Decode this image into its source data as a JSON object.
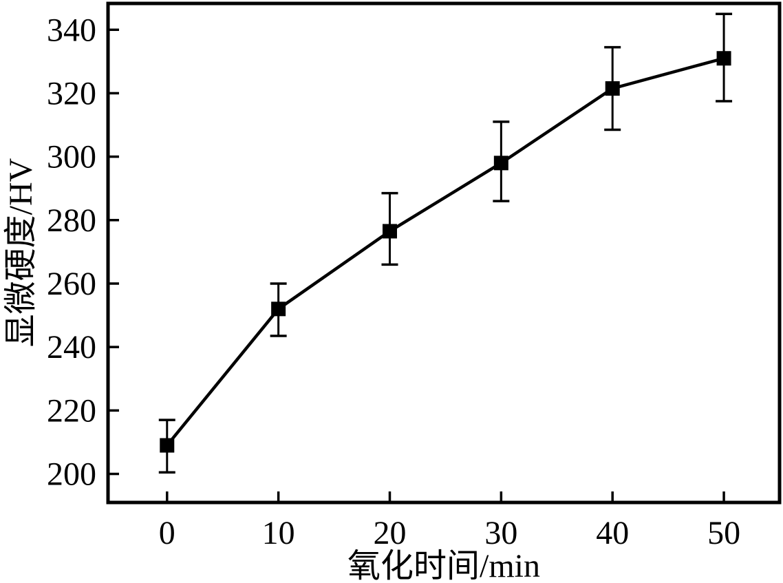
{
  "figure": {
    "background": "#ffffff",
    "ink_color": "#000000"
  },
  "chart_data": {
    "type": "line",
    "title": "",
    "xlabel": "氧化时间/min",
    "ylabel": "显微硬度/HV",
    "grid": false,
    "legend": false,
    "marker": "filled-square",
    "series": [
      {
        "name": "microhardness-vs-oxidation-time",
        "color": "#000000",
        "points": [
          {
            "x": 0,
            "y": 209,
            "y_low": 200.5,
            "y_high": 217
          },
          {
            "x": 10,
            "y": 252,
            "y_low": 243.5,
            "y_high": 260
          },
          {
            "x": 20,
            "y": 276.5,
            "y_low": 266,
            "y_high": 288.5
          },
          {
            "x": 30,
            "y": 298,
            "y_low": 286,
            "y_high": 311
          },
          {
            "x": 40,
            "y": 321.5,
            "y_low": 308.5,
            "y_high": 334.5
          },
          {
            "x": 50,
            "y": 331,
            "y_low": 317.5,
            "y_high": 345
          }
        ]
      }
    ],
    "xticks": [
      0,
      10,
      20,
      30,
      40,
      50
    ],
    "yticks": [
      200,
      220,
      240,
      260,
      280,
      300,
      320,
      340
    ],
    "xlim": [
      -5.3,
      55
    ],
    "ylim": [
      191,
      348.3
    ]
  }
}
